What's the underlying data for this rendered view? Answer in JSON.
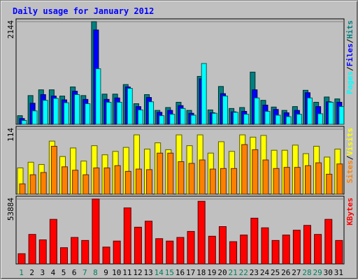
{
  "title": "Daily usage for January 2012",
  "colors": {
    "hits": "#008080",
    "files": "#0000ff",
    "pages": "#00ffff",
    "visits": "#ffff00",
    "sites": "#ff8000",
    "kbytes": "#ff0000",
    "title": "#0000ff",
    "weekend_day": "#00805c",
    "weekday_day": "#000000"
  },
  "chart_data": [
    {
      "type": "bar",
      "panel": "hits-files-pages",
      "categories": [
        "1",
        "2",
        "3",
        "4",
        "5",
        "6",
        "7",
        "8",
        "9",
        "10",
        "11",
        "12",
        "13",
        "14",
        "15",
        "16",
        "17",
        "18",
        "19",
        "20",
        "21",
        "22",
        "23",
        "24",
        "25",
        "26",
        "27",
        "28",
        "29",
        "30",
        "31"
      ],
      "series": [
        {
          "name": "Hits",
          "values": [
            180,
            600,
            720,
            720,
            590,
            780,
            600,
            2144,
            630,
            630,
            830,
            430,
            620,
            290,
            350,
            460,
            290,
            1000,
            300,
            790,
            330,
            350,
            1090,
            500,
            360,
            290,
            370,
            710,
            460,
            570,
            530
          ]
        },
        {
          "name": "Files",
          "values": [
            120,
            440,
            620,
            590,
            510,
            690,
            520,
            1970,
            520,
            550,
            780,
            370,
            560,
            250,
            290,
            390,
            230,
            950,
            240,
            640,
            260,
            270,
            720,
            400,
            310,
            240,
            290,
            660,
            370,
            470,
            460
          ]
        },
        {
          "name": "Pages",
          "values": [
            80,
            280,
            500,
            540,
            450,
            620,
            430,
            1160,
            460,
            460,
            750,
            300,
            470,
            180,
            210,
            330,
            190,
            1270,
            230,
            590,
            250,
            210,
            550,
            270,
            190,
            160,
            210,
            550,
            220,
            460,
            370
          ]
        }
      ],
      "ymax": 2144,
      "y_tick_label": "2144",
      "ylabel_parts": [
        "Pages",
        "/",
        "Files",
        "/",
        "Hits"
      ]
    },
    {
      "type": "bar",
      "panel": "visits-sites",
      "categories": [
        "1",
        "2",
        "3",
        "4",
        "5",
        "6",
        "7",
        "8",
        "9",
        "10",
        "11",
        "12",
        "13",
        "14",
        "15",
        "16",
        "17",
        "18",
        "19",
        "20",
        "21",
        "22",
        "23",
        "24",
        "25",
        "26",
        "27",
        "28",
        "29",
        "30",
        "31"
      ],
      "series": [
        {
          "name": "Visits",
          "values": [
            46,
            56,
            52,
            93,
            66,
            81,
            58,
            85,
            69,
            75,
            82,
            104,
            79,
            90,
            78,
            104,
            85,
            104,
            72,
            92,
            75,
            104,
            100,
            103,
            77,
            77,
            86,
            71,
            84,
            65,
            79
          ]
        },
        {
          "name": "Sites",
          "values": [
            18,
            34,
            38,
            84,
            48,
            42,
            34,
            46,
            46,
            50,
            40,
            44,
            43,
            72,
            72,
            57,
            54,
            60,
            44,
            45,
            45,
            87,
            78,
            60,
            45,
            47,
            47,
            50,
            55,
            35,
            53
          ]
        }
      ],
      "ymax": 114,
      "y_tick_label": "114",
      "ylabel_parts": [
        "Sites",
        "/",
        "Visits"
      ]
    },
    {
      "type": "bar",
      "panel": "kbytes",
      "categories": [
        "1",
        "2",
        "3",
        "4",
        "5",
        "6",
        "7",
        "8",
        "9",
        "10",
        "11",
        "12",
        "13",
        "14",
        "15",
        "16",
        "17",
        "18",
        "19",
        "20",
        "21",
        "22",
        "23",
        "24",
        "25",
        "26",
        "27",
        "28",
        "29",
        "30",
        "31"
      ],
      "series": [
        {
          "name": "KBytes",
          "values": [
            8500,
            24500,
            20000,
            37000,
            13500,
            22000,
            19500,
            53884,
            14000,
            19000,
            46500,
            30500,
            35500,
            21000,
            19000,
            22000,
            27000,
            52000,
            23000,
            31000,
            18500,
            24000,
            38000,
            30000,
            19500,
            24000,
            28000,
            32000,
            24500,
            37000,
            19500
          ]
        }
      ],
      "ymax": 53884,
      "y_tick_label": "53884",
      "ylabel_parts": [
        "KBytes"
      ]
    }
  ],
  "x_labels": [
    "1",
    "2",
    "3",
    "4",
    "5",
    "6",
    "7",
    "8",
    "9",
    "10",
    "11",
    "12",
    "13",
    "14",
    "15",
    "16",
    "17",
    "18",
    "19",
    "20",
    "21",
    "22",
    "23",
    "24",
    "25",
    "26",
    "27",
    "28",
    "29",
    "30",
    "31"
  ],
  "weekend_days": [
    "1",
    "7",
    "8",
    "14",
    "15",
    "21",
    "22",
    "28",
    "29"
  ]
}
